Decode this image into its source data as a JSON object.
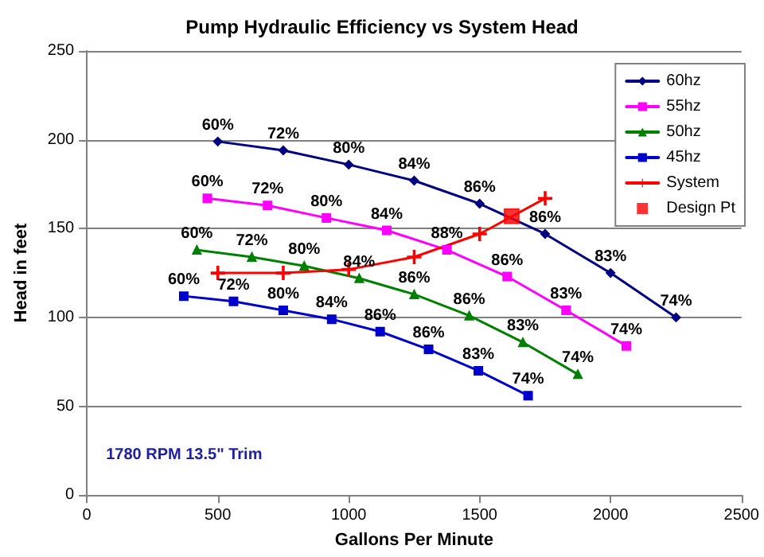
{
  "chart_data": {
    "type": "line",
    "title": "Pump Hydraulic Efficiency vs System Head",
    "xlabel": "Gallons Per Minute",
    "ylabel": "Head in feet",
    "xlim": [
      0,
      2500
    ],
    "xticks": [
      0,
      500,
      1000,
      1500,
      2000,
      2500
    ],
    "ylim": [
      0,
      250
    ],
    "yticks": [
      0,
      50,
      100,
      150,
      200,
      250
    ],
    "grid": "y",
    "legend": "top right",
    "line_style": "solid",
    "annotations": [
      "1780 RPM 13.5\" Trim",
      {
        "text": "60%",
        "x": 500,
        "y": 199
      },
      {
        "text": "72%",
        "x": 750,
        "y": 194
      },
      {
        "text": "80%",
        "x": 1000,
        "y": 186
      },
      {
        "text": "84%",
        "x": 1250,
        "y": 177
      },
      {
        "text": "86%",
        "x": 1500,
        "y": 164
      },
      {
        "text": "86%",
        "x": 1750,
        "y": 147
      },
      {
        "text": "83%",
        "x": 2000,
        "y": 125
      },
      {
        "text": "74%",
        "x": 2250,
        "y": 100
      },
      {
        "text": "60%",
        "x": 460,
        "y": 167
      },
      {
        "text": "72%",
        "x": 690,
        "y": 163
      },
      {
        "text": "80%",
        "x": 915,
        "y": 156
      },
      {
        "text": "84%",
        "x": 1145,
        "y": 149
      },
      {
        "text": "88%",
        "x": 1375,
        "y": 138
      },
      {
        "text": "86%",
        "x": 1605,
        "y": 123
      },
      {
        "text": "83%",
        "x": 1830,
        "y": 104
      },
      {
        "text": "74%",
        "x": 2060,
        "y": 84
      },
      {
        "text": "60%",
        "x": 420,
        "y": 138
      },
      {
        "text": "72%",
        "x": 630,
        "y": 134
      },
      {
        "text": "80%",
        "x": 830,
        "y": 129
      },
      {
        "text": "84%",
        "x": 1040,
        "y": 122
      },
      {
        "text": "86%",
        "x": 1250,
        "y": 113
      },
      {
        "text": "86%",
        "x": 1460,
        "y": 101
      },
      {
        "text": "83%",
        "x": 1665,
        "y": 86
      },
      {
        "text": "74%",
        "x": 1875,
        "y": 68
      },
      {
        "text": "60%",
        "x": 370,
        "y": 112
      },
      {
        "text": "72%",
        "x": 560,
        "y": 109
      },
      {
        "text": "80%",
        "x": 750,
        "y": 104
      },
      {
        "text": "84%",
        "x": 935,
        "y": 99
      },
      {
        "text": "86%",
        "x": 1120,
        "y": 92
      },
      {
        "text": "86%",
        "x": 1305,
        "y": 82
      },
      {
        "text": "83%",
        "x": 1495,
        "y": 70
      },
      {
        "text": "74%",
        "x": 1685,
        "y": 56
      }
    ],
    "series": [
      {
        "name": "60hz",
        "color": "#000080",
        "marker": "diamond",
        "x": [
          500,
          750,
          1000,
          1250,
          1500,
          1750,
          2000,
          2250
        ],
        "values": [
          199,
          194,
          186,
          177,
          164,
          147,
          125,
          100
        ]
      },
      {
        "name": "55hz",
        "color": "#ff00ff",
        "marker": "square",
        "x": [
          460,
          690,
          915,
          1145,
          1375,
          1605,
          1830,
          2060
        ],
        "values": [
          167,
          163,
          156,
          149,
          138,
          123,
          104,
          84
        ]
      },
      {
        "name": "50hz",
        "color": "#008000",
        "marker": "triangle",
        "x": [
          420,
          630,
          830,
          1040,
          1250,
          1460,
          1665,
          1875
        ],
        "values": [
          138,
          134,
          129,
          122,
          113,
          101,
          86,
          68
        ]
      },
      {
        "name": "45hz",
        "color": "#0000cc",
        "marker": "square",
        "x": [
          370,
          560,
          750,
          935,
          1120,
          1305,
          1495,
          1685
        ],
        "values": [
          112,
          109,
          104,
          99,
          92,
          82,
          70,
          56
        ]
      },
      {
        "name": "System",
        "color": "#ff0000",
        "marker": "cross",
        "x": [
          500,
          750,
          1000,
          1250,
          1500,
          1750
        ],
        "values": [
          125,
          125,
          127,
          134,
          147,
          167
        ]
      },
      {
        "name": "Design Pt",
        "color": "#ff0000",
        "marker": "square",
        "type": "scatter",
        "x": [
          1622
        ],
        "values": [
          157
        ]
      }
    ]
  }
}
